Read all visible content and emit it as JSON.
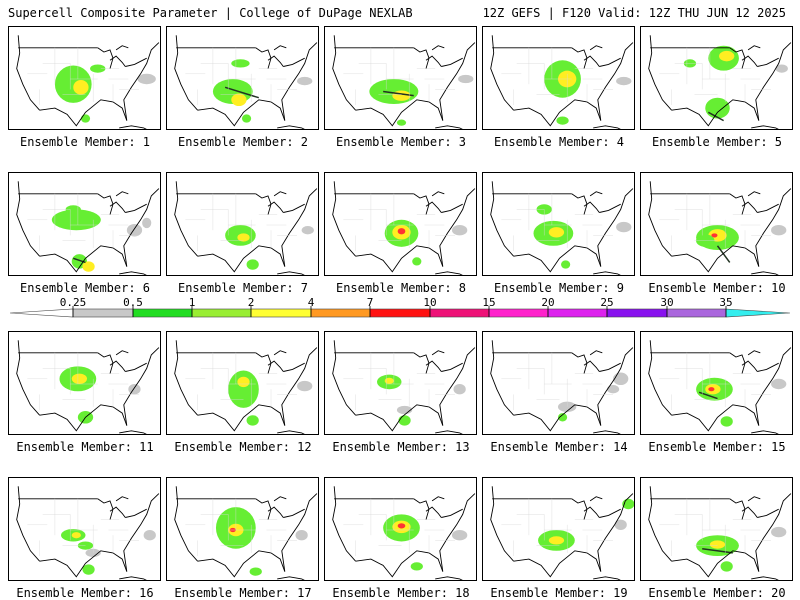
{
  "header": {
    "title": "Supercell Composite Parameter | College of DuPage NEXLAB",
    "run_info": "12Z GEFS | F120 Valid: 12Z THU JUN 12 2025"
  },
  "member_prefix": "Ensemble Member: ",
  "members": [
    {
      "number": 1,
      "blobs": [
        [
          0.42,
          0.55,
          0.12,
          0.18,
          "#66ee33"
        ],
        [
          0.47,
          0.58,
          0.05,
          0.07,
          "#ffee22"
        ],
        [
          0.58,
          0.4,
          0.05,
          0.04,
          "#66ee33"
        ],
        [
          0.5,
          0.88,
          0.03,
          0.04,
          "#66ee33"
        ]
      ],
      "lines": [],
      "gray": [
        [
          0.9,
          0.5,
          0.06,
          0.05
        ]
      ]
    },
    {
      "number": 2,
      "blobs": [
        [
          0.43,
          0.62,
          0.13,
          0.12,
          "#66ee33"
        ],
        [
          0.47,
          0.7,
          0.05,
          0.06,
          "#ffee22"
        ],
        [
          0.48,
          0.35,
          0.06,
          0.04,
          "#66ee33"
        ],
        [
          0.52,
          0.88,
          0.03,
          0.04,
          "#66ee33"
        ]
      ],
      "lines": [
        [
          0.38,
          0.58,
          0.6,
          0.68
        ]
      ],
      "gray": [
        [
          0.9,
          0.52,
          0.05,
          0.04
        ]
      ]
    },
    {
      "number": 3,
      "blobs": [
        [
          0.45,
          0.62,
          0.16,
          0.12,
          "#66ee33"
        ],
        [
          0.5,
          0.66,
          0.06,
          0.05,
          "#ffee22"
        ],
        [
          0.5,
          0.92,
          0.03,
          0.03,
          "#66ee33"
        ]
      ],
      "lines": [
        [
          0.38,
          0.62,
          0.58,
          0.66
        ]
      ],
      "gray": [
        [
          0.92,
          0.5,
          0.05,
          0.04
        ]
      ]
    },
    {
      "number": 4,
      "blobs": [
        [
          0.52,
          0.5,
          0.12,
          0.18,
          "#66ee33"
        ],
        [
          0.55,
          0.5,
          0.06,
          0.08,
          "#ffee22"
        ],
        [
          0.52,
          0.9,
          0.04,
          0.04,
          "#66ee33"
        ]
      ],
      "lines": [],
      "gray": [
        [
          0.92,
          0.52,
          0.05,
          0.04
        ]
      ]
    },
    {
      "number": 5,
      "blobs": [
        [
          0.54,
          0.3,
          0.1,
          0.12,
          "#66ee33"
        ],
        [
          0.56,
          0.28,
          0.05,
          0.05,
          "#ffee22"
        ],
        [
          0.5,
          0.78,
          0.08,
          0.1,
          "#66ee33"
        ],
        [
          0.32,
          0.35,
          0.04,
          0.04,
          "#66ee33"
        ]
      ],
      "lines": [
        [
          0.44,
          0.82,
          0.54,
          0.9
        ]
      ],
      "gray": [
        [
          0.92,
          0.4,
          0.04,
          0.04
        ]
      ]
    },
    {
      "number": 6,
      "blobs": [
        [
          0.44,
          0.45,
          0.16,
          0.1,
          "#66ee33"
        ],
        [
          0.42,
          0.35,
          0.05,
          0.04,
          "#66ee33"
        ],
        [
          0.46,
          0.85,
          0.05,
          0.07,
          "#66ee33"
        ],
        [
          0.52,
          0.9,
          0.04,
          0.05,
          "#ffee22"
        ]
      ],
      "lines": [
        [
          0.42,
          0.82,
          0.5,
          0.86
        ]
      ],
      "gray": [
        [
          0.82,
          0.55,
          0.05,
          0.06
        ],
        [
          0.9,
          0.48,
          0.03,
          0.05
        ]
      ]
    },
    {
      "number": 7,
      "blobs": [
        [
          0.48,
          0.6,
          0.1,
          0.1,
          "#66ee33"
        ],
        [
          0.5,
          0.62,
          0.04,
          0.04,
          "#ffee22"
        ],
        [
          0.56,
          0.88,
          0.04,
          0.05,
          "#66ee33"
        ]
      ],
      "lines": [],
      "gray": [
        [
          0.92,
          0.55,
          0.04,
          0.04
        ]
      ]
    },
    {
      "number": 8,
      "blobs": [
        [
          0.5,
          0.58,
          0.11,
          0.13,
          "#66ee33"
        ],
        [
          0.5,
          0.57,
          0.06,
          0.07,
          "#ffee22"
        ],
        [
          0.5,
          0.56,
          0.025,
          0.03,
          "#ff3333"
        ],
        [
          0.6,
          0.85,
          0.03,
          0.04,
          "#66ee33"
        ]
      ],
      "lines": [],
      "gray": [
        [
          0.88,
          0.55,
          0.05,
          0.05
        ]
      ]
    },
    {
      "number": 9,
      "blobs": [
        [
          0.46,
          0.58,
          0.13,
          0.12,
          "#66ee33"
        ],
        [
          0.48,
          0.57,
          0.05,
          0.05,
          "#ffee22"
        ],
        [
          0.4,
          0.35,
          0.05,
          0.05,
          "#66ee33"
        ],
        [
          0.54,
          0.88,
          0.03,
          0.04,
          "#66ee33"
        ]
      ],
      "lines": [],
      "gray": [
        [
          0.92,
          0.52,
          0.05,
          0.05
        ]
      ]
    },
    {
      "number": 10,
      "blobs": [
        [
          0.5,
          0.62,
          0.14,
          0.12,
          "#66ee33"
        ],
        [
          0.5,
          0.6,
          0.06,
          0.06,
          "#ffee22"
        ],
        [
          0.48,
          0.6,
          0.02,
          0.02,
          "#ff3333"
        ],
        [
          0.42,
          0.65,
          0.06,
          0.06,
          "#66ee33"
        ]
      ],
      "lines": [
        [
          0.5,
          0.7,
          0.58,
          0.86
        ]
      ],
      "gray": [
        [
          0.9,
          0.55,
          0.05,
          0.05
        ]
      ]
    },
    {
      "number": 11,
      "blobs": [
        [
          0.45,
          0.45,
          0.12,
          0.12,
          "#66ee33"
        ],
        [
          0.46,
          0.45,
          0.05,
          0.05,
          "#ffee22"
        ],
        [
          0.5,
          0.82,
          0.05,
          0.06,
          "#66ee33"
        ]
      ],
      "lines": [],
      "gray": [
        [
          0.82,
          0.55,
          0.04,
          0.05
        ]
      ]
    },
    {
      "number": 12,
      "blobs": [
        [
          0.5,
          0.55,
          0.1,
          0.18,
          "#66ee33"
        ],
        [
          0.5,
          0.48,
          0.04,
          0.05,
          "#ffee22"
        ],
        [
          0.56,
          0.85,
          0.04,
          0.05,
          "#66ee33"
        ]
      ],
      "lines": [],
      "gray": [
        [
          0.9,
          0.52,
          0.05,
          0.05
        ]
      ]
    },
    {
      "number": 13,
      "blobs": [
        [
          0.42,
          0.48,
          0.08,
          0.07,
          "#66ee33"
        ],
        [
          0.42,
          0.47,
          0.03,
          0.03,
          "#ffee22"
        ],
        [
          0.52,
          0.85,
          0.04,
          0.05,
          "#66ee33"
        ]
      ],
      "lines": [],
      "gray": [
        [
          0.52,
          0.75,
          0.05,
          0.04
        ],
        [
          0.88,
          0.55,
          0.04,
          0.05
        ]
      ]
    },
    {
      "number": 14,
      "blobs": [
        [
          0.52,
          0.82,
          0.03,
          0.04,
          "#66ee33"
        ]
      ],
      "lines": [],
      "gray": [
        [
          0.55,
          0.72,
          0.06,
          0.05
        ],
        [
          0.9,
          0.45,
          0.05,
          0.06
        ],
        [
          0.85,
          0.55,
          0.04,
          0.04
        ]
      ]
    },
    {
      "number": 15,
      "blobs": [
        [
          0.48,
          0.55,
          0.12,
          0.11,
          "#66ee33"
        ],
        [
          0.47,
          0.55,
          0.05,
          0.05,
          "#ffee22"
        ],
        [
          0.46,
          0.55,
          0.02,
          0.02,
          "#ff3333"
        ],
        [
          0.56,
          0.86,
          0.04,
          0.05,
          "#66ee33"
        ]
      ],
      "lines": [
        [
          0.38,
          0.58,
          0.5,
          0.64
        ]
      ],
      "gray": [
        [
          0.9,
          0.5,
          0.05,
          0.05
        ]
      ]
    },
    {
      "number": 16,
      "blobs": [
        [
          0.42,
          0.55,
          0.08,
          0.06,
          "#66ee33"
        ],
        [
          0.44,
          0.55,
          0.03,
          0.03,
          "#ffee22"
        ],
        [
          0.5,
          0.65,
          0.05,
          0.04,
          "#66ee33"
        ],
        [
          0.52,
          0.88,
          0.04,
          0.05,
          "#66ee33"
        ]
      ],
      "lines": [],
      "gray": [
        [
          0.55,
          0.72,
          0.05,
          0.04
        ],
        [
          0.92,
          0.55,
          0.04,
          0.05
        ]
      ]
    },
    {
      "number": 17,
      "blobs": [
        [
          0.45,
          0.48,
          0.13,
          0.2,
          "#66ee33"
        ],
        [
          0.45,
          0.5,
          0.05,
          0.06,
          "#ffee22"
        ],
        [
          0.43,
          0.5,
          0.02,
          0.02,
          "#ff3333"
        ],
        [
          0.58,
          0.9,
          0.04,
          0.04,
          "#66ee33"
        ]
      ],
      "lines": [],
      "gray": [
        [
          0.88,
          0.55,
          0.04,
          0.05
        ]
      ]
    },
    {
      "number": 18,
      "blobs": [
        [
          0.5,
          0.48,
          0.12,
          0.13,
          "#66ee33"
        ],
        [
          0.5,
          0.47,
          0.06,
          0.06,
          "#ffee22"
        ],
        [
          0.5,
          0.46,
          0.025,
          0.025,
          "#ff3333"
        ],
        [
          0.6,
          0.85,
          0.04,
          0.04,
          "#66ee33"
        ]
      ],
      "lines": [],
      "gray": [
        [
          0.88,
          0.55,
          0.05,
          0.05
        ]
      ]
    },
    {
      "number": 19,
      "blobs": [
        [
          0.48,
          0.6,
          0.12,
          0.1,
          "#66ee33"
        ],
        [
          0.48,
          0.6,
          0.05,
          0.04,
          "#ffee22"
        ],
        [
          0.95,
          0.25,
          0.04,
          0.05,
          "#66ee33"
        ]
      ],
      "lines": [],
      "gray": [
        [
          0.9,
          0.45,
          0.04,
          0.05
        ]
      ]
    },
    {
      "number": 20,
      "blobs": [
        [
          0.5,
          0.65,
          0.14,
          0.1,
          "#66ee33"
        ],
        [
          0.5,
          0.64,
          0.05,
          0.04,
          "#ffee22"
        ],
        [
          0.56,
          0.85,
          0.04,
          0.05,
          "#66ee33"
        ]
      ],
      "lines": [
        [
          0.4,
          0.68,
          0.6,
          0.72
        ]
      ],
      "gray": [
        [
          0.9,
          0.52,
          0.05,
          0.05
        ]
      ]
    }
  ],
  "legend": {
    "labels": [
      "0.25",
      "0.5",
      "1",
      "2",
      "4",
      "7",
      "10",
      "15",
      "20",
      "25",
      "30",
      "35"
    ],
    "colors": [
      "#c8c8c8",
      "#22dd22",
      "#99ee33",
      "#ffff33",
      "#ff9922",
      "#ff1111",
      "#ee1177",
      "#ff22cc",
      "#dd22ee",
      "#8811ee",
      "#aa66dd",
      "#33eeee"
    ]
  }
}
